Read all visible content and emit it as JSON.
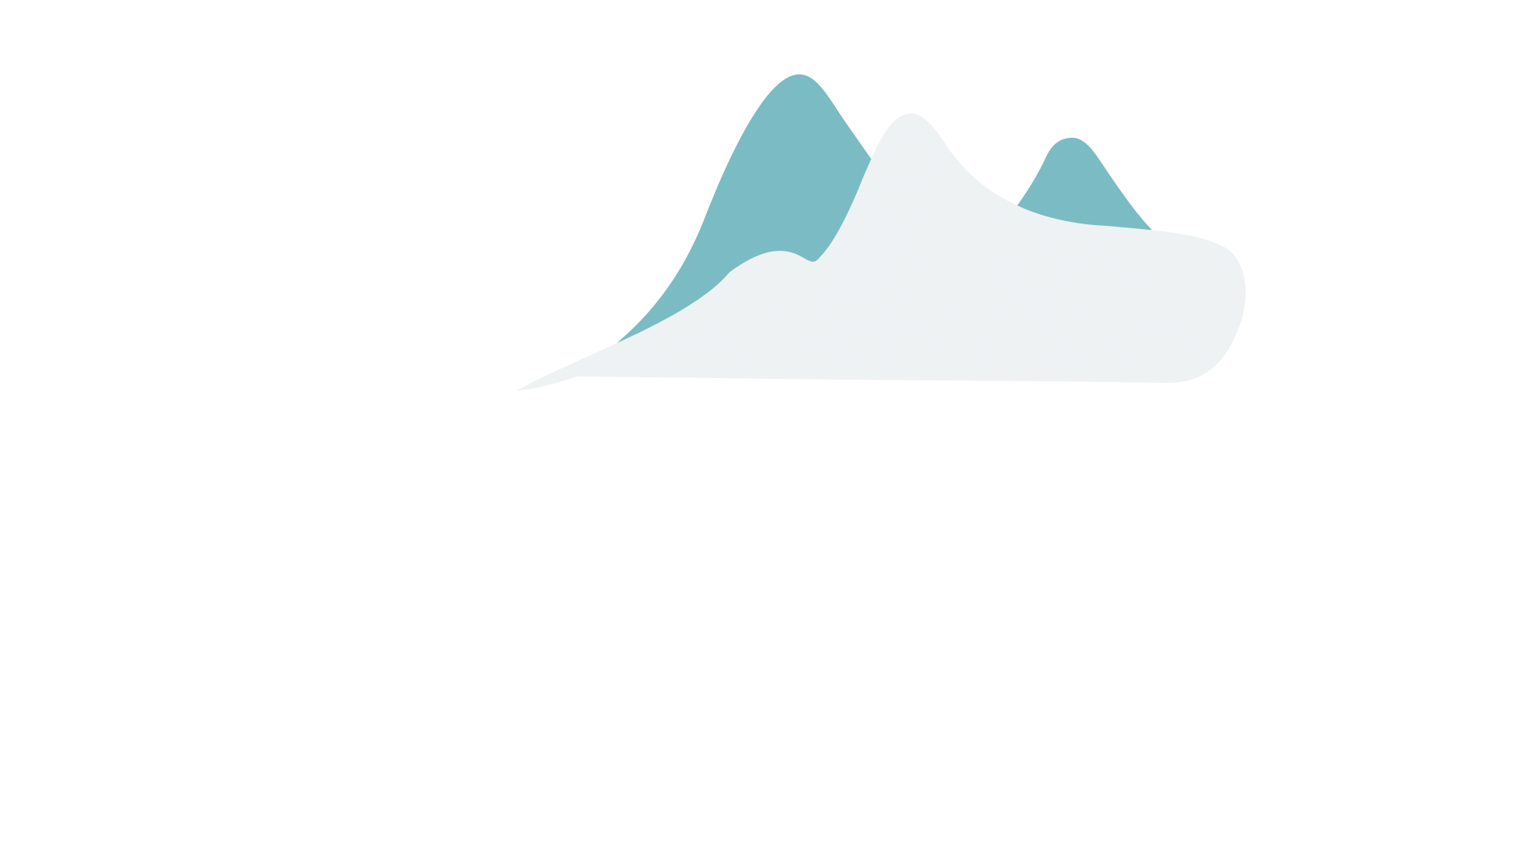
{
  "page": {
    "background_color": "#ffffff"
  },
  "illustration": {
    "subject": "mountain-landscape",
    "colors": {
      "mountains": "#78bcc4",
      "foreground_hill": "#f0f4f5"
    }
  }
}
